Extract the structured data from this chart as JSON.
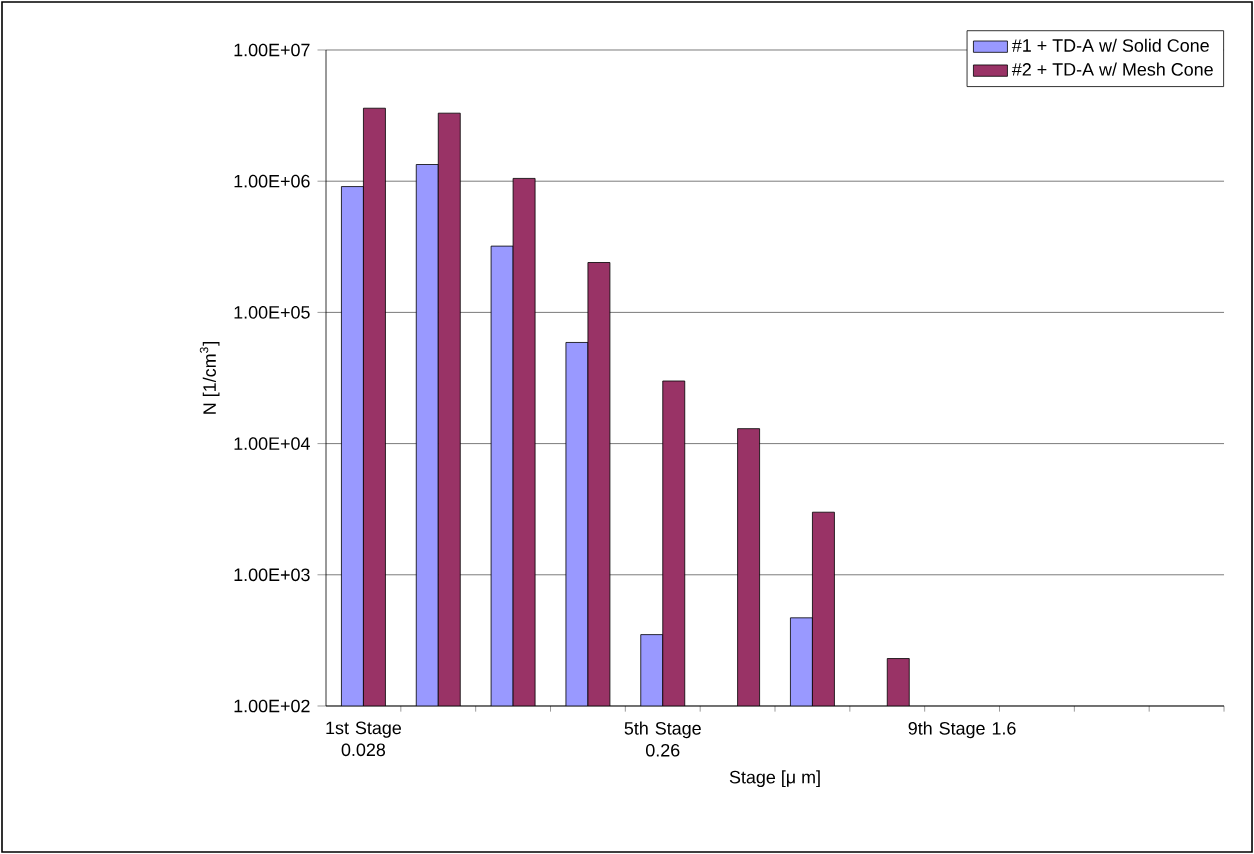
{
  "chart_data": {
    "type": "bar",
    "xlabel": "Stage [μ m]",
    "ylabel": "N [1/cm$^{3}$]",
    "categories": [
      "1st Stage 0.028",
      null,
      null,
      null,
      "5th Stage 0.26",
      null,
      null,
      null,
      "9th Stage 1.6",
      null,
      null,
      null
    ],
    "series": [
      {
        "name": "#1 + TD-A w/ Solid Cone",
        "color": "#9999ff",
        "values": [
          910000,
          1340000,
          320000,
          59000,
          350,
          null,
          470,
          null,
          null,
          null,
          null,
          null
        ]
      },
      {
        "name": "#2 + TD-A w/ Mesh Cone",
        "color": "#993366",
        "values": [
          3600000,
          3300000,
          1050000,
          240000,
          30000,
          13000,
          3000,
          230,
          null,
          null,
          null,
          null
        ]
      }
    ],
    "log": true,
    "ylim": [
      100,
      10000000
    ],
    "yticks": [
      {
        "value": 100,
        "label": "1.00E+02"
      },
      {
        "value": 1000,
        "label": "1.00E+03"
      },
      {
        "value": 10000,
        "label": "1.00E+04"
      },
      {
        "value": 100000,
        "label": "1.00E+05"
      },
      {
        "value": 1000000,
        "label": "1.00E+06"
      },
      {
        "value": 10000000,
        "label": "1.00E+07"
      }
    ],
    "grid": "y",
    "legend": "top right"
  }
}
